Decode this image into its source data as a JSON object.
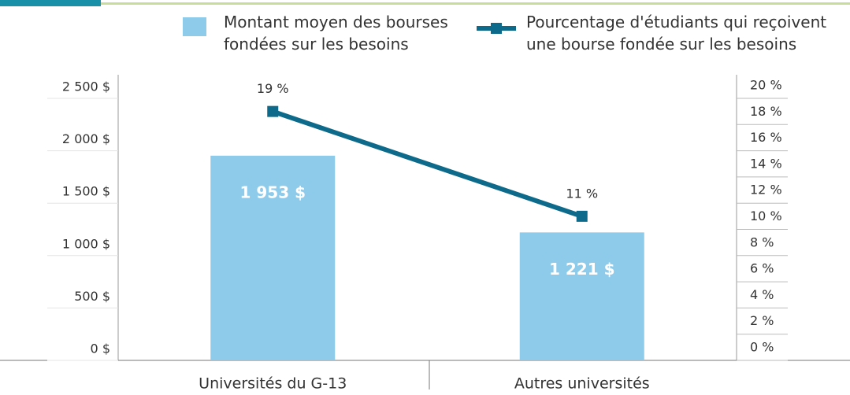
{
  "chart_data": {
    "type": "bar-line",
    "categories": [
      "Universités du G-13",
      "Autres universités"
    ],
    "series": [
      {
        "name": "Montant moyen des bourses fondées sur les besoins",
        "type": "bar",
        "color": "#8ecbeb",
        "values": [
          1953,
          1221
        ],
        "value_labels": [
          "1 953 $",
          "1 221 $"
        ]
      },
      {
        "name": "Pourcentage d'étudiants qui reçoivent une bourse fondée sur les besoins",
        "type": "line",
        "axis": "y2",
        "color": "#0e6a8a",
        "values": [
          19,
          11
        ],
        "value_labels": [
          "19 %",
          "11 %"
        ]
      }
    ],
    "ylim": [
      0,
      2500
    ],
    "yticks": [
      {
        "value": 0,
        "label": "0 $"
      },
      {
        "value": 500,
        "label": "500 $"
      },
      {
        "value": 1000,
        "label": "1 000 $"
      },
      {
        "value": 1500,
        "label": "1 500 $"
      },
      {
        "value": 2000,
        "label": "2 000 $"
      },
      {
        "value": 2500,
        "label": "2 500 $"
      }
    ],
    "y2lim": [
      0,
      20
    ],
    "y2ticks": [
      {
        "value": 0,
        "label": "0 %"
      },
      {
        "value": 2,
        "label": "2 %"
      },
      {
        "value": 4,
        "label": "4 %"
      },
      {
        "value": 6,
        "label": "6 %"
      },
      {
        "value": 8,
        "label": "8 %"
      },
      {
        "value": 10,
        "label": "10 %"
      },
      {
        "value": 12,
        "label": "12 %"
      },
      {
        "value": 14,
        "label": "14 %"
      },
      {
        "value": 16,
        "label": "16 %"
      },
      {
        "value": 18,
        "label": "18 %"
      },
      {
        "value": 20,
        "label": "20 %"
      }
    ]
  }
}
